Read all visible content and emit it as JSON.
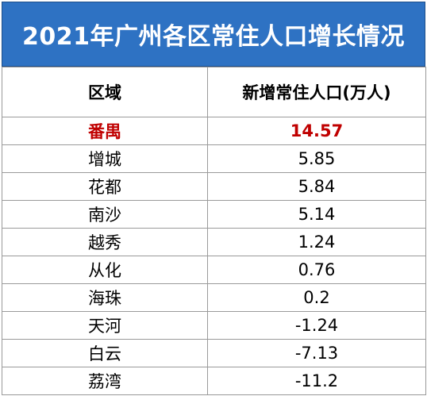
{
  "title": "2021年广州各区常住人口增长情况",
  "headers": {
    "district": "区域",
    "growth": "新增常住人口(万人)"
  },
  "rows": [
    {
      "district": "番禺",
      "growth": "14.57"
    },
    {
      "district": "增城",
      "growth": "5.85"
    },
    {
      "district": "花都",
      "growth": "5.84"
    },
    {
      "district": "南沙",
      "growth": "5.14"
    },
    {
      "district": "越秀",
      "growth": "1.24"
    },
    {
      "district": "从化",
      "growth": "0.76"
    },
    {
      "district": "海珠",
      "growth": "0.2"
    },
    {
      "district": "天河",
      "growth": "-1.24"
    },
    {
      "district": "白云",
      "growth": "-7.13"
    },
    {
      "district": "荔湾",
      "growth": "-11.2"
    }
  ],
  "colors": {
    "header_bg": "#2e72c3",
    "highlight": "#c00000"
  }
}
